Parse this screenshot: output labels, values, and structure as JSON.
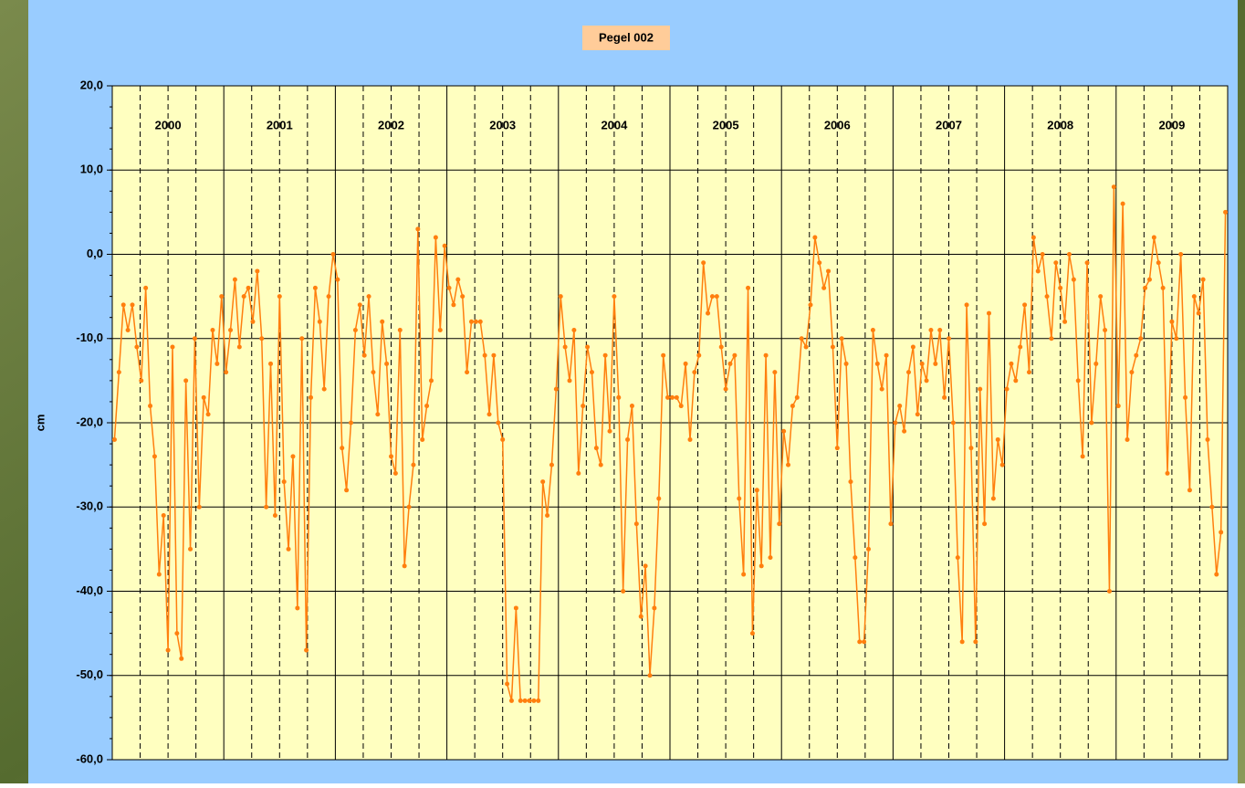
{
  "chart_data": {
    "type": "line",
    "title": "Pegel 002",
    "y_label": "cm",
    "xlim": [
      2000,
      2010
    ],
    "xticks": [
      {
        "value": 2000.5,
        "label": "2000"
      },
      {
        "value": 2001.5,
        "label": "2001"
      },
      {
        "value": 2002.5,
        "label": "2002"
      },
      {
        "value": 2003.5,
        "label": "2003"
      },
      {
        "value": 2004.5,
        "label": "2004"
      },
      {
        "value": 2005.5,
        "label": "2005"
      },
      {
        "value": 2006.5,
        "label": "2006"
      },
      {
        "value": 2007.5,
        "label": "2007"
      },
      {
        "value": 2008.5,
        "label": "2008"
      },
      {
        "value": 2009.5,
        "label": "2009"
      }
    ],
    "ylim": [
      -60,
      20
    ],
    "yticks": [
      {
        "value": -60,
        "label": "-60,0"
      },
      {
        "value": -50,
        "label": "-50,0"
      },
      {
        "value": -40,
        "label": "-40,0"
      },
      {
        "value": -30,
        "label": "-30,0"
      },
      {
        "value": -20,
        "label": "-20,0"
      },
      {
        "value": -10,
        "label": "-10,0"
      },
      {
        "value": 0,
        "label": "0,0"
      },
      {
        "value": 10,
        "label": "10,0"
      },
      {
        "value": 20,
        "label": "20,0"
      }
    ],
    "grid": true,
    "x": [
      2000.02,
      2000.06,
      2000.1,
      2000.14,
      2000.18,
      2000.22,
      2000.26,
      2000.3,
      2000.34,
      2000.38,
      2000.42,
      2000.46,
      2000.5,
      2000.54,
      2000.58,
      2000.62,
      2000.66,
      2000.7,
      2000.74,
      2000.78,
      2000.82,
      2000.86,
      2000.9,
      2000.94,
      2000.98,
      2001.02,
      2001.06,
      2001.1,
      2001.14,
      2001.18,
      2001.22,
      2001.26,
      2001.3,
      2001.34,
      2001.38,
      2001.42,
      2001.46,
      2001.5,
      2001.54,
      2001.58,
      2001.62,
      2001.66,
      2001.7,
      2001.74,
      2001.78,
      2001.82,
      2001.86,
      2001.9,
      2001.94,
      2001.98,
      2002.02,
      2002.06,
      2002.1,
      2002.14,
      2002.18,
      2002.22,
      2002.26,
      2002.3,
      2002.34,
      2002.38,
      2002.42,
      2002.46,
      2002.5,
      2002.54,
      2002.58,
      2002.62,
      2002.66,
      2002.7,
      2002.74,
      2002.78,
      2002.82,
      2002.86,
      2002.9,
      2002.94,
      2002.98,
      2003.02,
      2003.06,
      2003.1,
      2003.14,
      2003.18,
      2003.22,
      2003.26,
      2003.3,
      2003.34,
      2003.38,
      2003.42,
      2003.46,
      2003.5,
      2003.54,
      2003.58,
      2003.62,
      2003.66,
      2003.7,
      2003.74,
      2003.78,
      2003.82,
      2003.86,
      2003.9,
      2003.94,
      2003.98,
      2004.02,
      2004.06,
      2004.1,
      2004.14,
      2004.18,
      2004.22,
      2004.26,
      2004.3,
      2004.34,
      2004.38,
      2004.42,
      2004.46,
      2004.5,
      2004.54,
      2004.58,
      2004.62,
      2004.66,
      2004.7,
      2004.74,
      2004.78,
      2004.82,
      2004.86,
      2004.9,
      2004.94,
      2004.98,
      2005.02,
      2005.06,
      2005.1,
      2005.14,
      2005.18,
      2005.22,
      2005.26,
      2005.3,
      2005.34,
      2005.38,
      2005.42,
      2005.46,
      2005.5,
      2005.54,
      2005.58,
      2005.62,
      2005.66,
      2005.7,
      2005.74,
      2005.78,
      2005.82,
      2005.86,
      2005.9,
      2005.94,
      2005.98,
      2006.02,
      2006.06,
      2006.1,
      2006.14,
      2006.18,
      2006.22,
      2006.26,
      2006.3,
      2006.34,
      2006.38,
      2006.42,
      2006.46,
      2006.5,
      2006.54,
      2006.58,
      2006.62,
      2006.66,
      2006.7,
      2006.74,
      2006.78,
      2006.82,
      2006.86,
      2006.9,
      2006.94,
      2006.98,
      2007.02,
      2007.06,
      2007.1,
      2007.14,
      2007.18,
      2007.22,
      2007.26,
      2007.3,
      2007.34,
      2007.38,
      2007.42,
      2007.46,
      2007.5,
      2007.54,
      2007.58,
      2007.62,
      2007.66,
      2007.7,
      2007.74,
      2007.78,
      2007.82,
      2007.86,
      2007.9,
      2007.94,
      2007.98,
      2008.02,
      2008.06,
      2008.1,
      2008.14,
      2008.18,
      2008.22,
      2008.26,
      2008.3,
      2008.34,
      2008.38,
      2008.42,
      2008.46,
      2008.5,
      2008.54,
      2008.58,
      2008.62,
      2008.66,
      2008.7,
      2008.74,
      2008.78,
      2008.82,
      2008.86,
      2008.9,
      2008.94,
      2008.98,
      2009.02,
      2009.06,
      2009.1,
      2009.14,
      2009.18,
      2009.22,
      2009.26,
      2009.3,
      2009.34,
      2009.38,
      2009.42,
      2009.46,
      2009.5,
      2009.54,
      2009.58,
      2009.62,
      2009.66,
      2009.7,
      2009.74,
      2009.78,
      2009.82,
      2009.86,
      2009.9,
      2009.94,
      2009.98
    ],
    "series": [
      {
        "color": "#ff7f0e",
        "values": [
          -22,
          -14,
          -6,
          -9,
          -6,
          -11,
          -15,
          -4,
          -18,
          -24,
          -38,
          -31,
          -47,
          -11,
          -45,
          -48,
          -15,
          -35,
          -10,
          -30,
          -17,
          -19,
          -9,
          -13,
          -5,
          -14,
          -9,
          -3,
          -11,
          -5,
          -4,
          -8,
          -2,
          -10,
          -30,
          -13,
          -31,
          -5,
          -27,
          -35,
          -24,
          -42,
          -10,
          -47,
          -17,
          -4,
          -8,
          -16,
          -5,
          0,
          -3,
          -23,
          -28,
          -20,
          -9,
          -6,
          -12,
          -5,
          -14,
          -19,
          -8,
          -13,
          -24,
          -26,
          -9,
          -37,
          -30,
          -25,
          3,
          -22,
          -18,
          -15,
          2,
          -9,
          1,
          -4,
          -6,
          -3,
          -5,
          -14,
          -8,
          -8,
          -8,
          -12,
          -19,
          -12,
          -20,
          -22,
          -51,
          -53,
          -42,
          -53,
          -53,
          -53,
          -53,
          -53,
          -27,
          -31,
          -25,
          -16,
          -5,
          -11,
          -15,
          -9,
          -26,
          -18,
          -11,
          -14,
          -23,
          -25,
          -12,
          -21,
          -5,
          -17,
          -40,
          -22,
          -18,
          -32,
          -43,
          -37,
          -50,
          -42,
          -29,
          -12,
          -17,
          -17,
          -17,
          -18,
          -13,
          -22,
          -14,
          -12,
          -1,
          -7,
          -5,
          -5,
          -11,
          -16,
          -13,
          -12,
          -29,
          -38,
          -4,
          -45,
          -28,
          -37,
          -12,
          -36,
          -14,
          -32,
          -21,
          -25,
          -18,
          -17,
          -10,
          -11,
          -6,
          2,
          -1,
          -4,
          -2,
          -11,
          -23,
          -10,
          -13,
          -27,
          -36,
          -46,
          -46,
          -35,
          -9,
          -13,
          -16,
          -12,
          -32,
          -20,
          -18,
          -21,
          -14,
          -11,
          -19,
          -13,
          -15,
          -9,
          -13,
          -9,
          -17,
          -10,
          -20,
          -36,
          -46,
          -6,
          -23,
          -46,
          -16,
          -32,
          -7,
          -29,
          -22,
          -25,
          -16,
          -13,
          -15,
          -11,
          -6,
          -14,
          2,
          -2,
          0,
          -5,
          -10,
          -1,
          -4,
          -8,
          0,
          -3,
          -15,
          -24,
          -1,
          -20,
          -13,
          -5,
          -9,
          -40,
          8,
          -18,
          6,
          -22,
          -14,
          -12,
          -10,
          -4,
          -3,
          2,
          -1,
          -4,
          -26,
          -8,
          -10,
          0,
          -17,
          -28,
          -5,
          -7,
          -3,
          -22,
          -30,
          -38,
          -33,
          5
        ]
      }
    ]
  }
}
